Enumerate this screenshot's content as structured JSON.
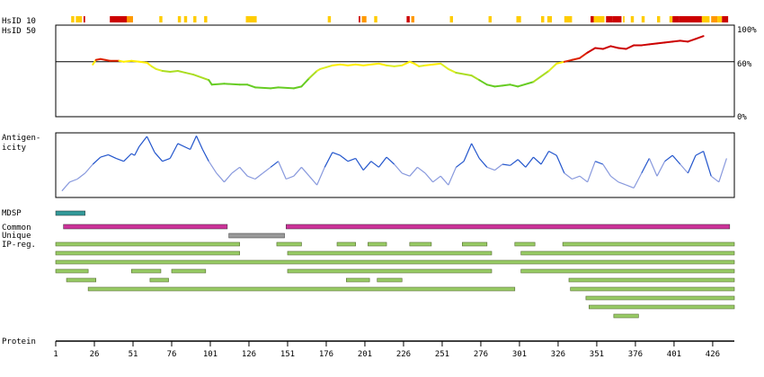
{
  "chart_data": [
    {
      "type": "heatmap",
      "row_labels": [
        "HsID 10",
        "HsID 50"
      ],
      "x_domain": [
        1,
        440
      ],
      "level_colors": {
        "low": "#ffcc00",
        "mid": "#ff9900",
        "high": "#cc0000"
      },
      "hsid10_segments": [
        [
          11,
          13,
          "low"
        ],
        [
          14,
          18,
          "low"
        ],
        [
          19,
          20,
          "high"
        ],
        [
          36,
          49,
          "high"
        ],
        [
          47,
          51,
          "mid"
        ],
        [
          68,
          70,
          "low"
        ],
        [
          80,
          82,
          "low"
        ],
        [
          84,
          86,
          "low"
        ],
        [
          90,
          92,
          "low"
        ],
        [
          97,
          99,
          "low"
        ],
        [
          124,
          131,
          "low"
        ],
        [
          177,
          179,
          "low"
        ],
        [
          197,
          198,
          "high"
        ],
        [
          199,
          202,
          "mid"
        ],
        [
          207,
          209,
          "low"
        ],
        [
          228,
          230,
          "high"
        ],
        [
          231,
          233,
          "mid"
        ],
        [
          256,
          258,
          "low"
        ],
        [
          281,
          283,
          "low"
        ],
        [
          299,
          302,
          "low"
        ],
        [
          315,
          317,
          "low"
        ],
        [
          319,
          322,
          "low"
        ],
        [
          330,
          335,
          "low"
        ],
        [
          347,
          349,
          "high"
        ],
        [
          349,
          356,
          "low"
        ],
        [
          357,
          361,
          "high"
        ],
        [
          361,
          367,
          "high"
        ],
        [
          368,
          369,
          "low"
        ],
        [
          373,
          375,
          "low"
        ],
        [
          380,
          382,
          "low"
        ],
        [
          390,
          392,
          "low"
        ],
        [
          398,
          400,
          "low"
        ],
        [
          400,
          404,
          "high"
        ],
        [
          404,
          419,
          "high"
        ],
        [
          419,
          424,
          "low"
        ],
        [
          425,
          429,
          "mid"
        ],
        [
          429,
          432,
          "low"
        ],
        [
          432,
          436,
          "high"
        ]
      ]
    },
    {
      "type": "line",
      "series_name": "HsID 50",
      "y_ticks": [
        "100%",
        "60%",
        "0%"
      ],
      "ylim": [
        0,
        100
      ],
      "reference_line": 60,
      "x": [
        25,
        27,
        30,
        33,
        36,
        42,
        45,
        50,
        55,
        60,
        63,
        66,
        70,
        75,
        80,
        85,
        90,
        100,
        102,
        110,
        120,
        125,
        130,
        140,
        145,
        155,
        160,
        165,
        170,
        172,
        176,
        180,
        185,
        190,
        195,
        200,
        210,
        215,
        220,
        225,
        230,
        233,
        236,
        240,
        245,
        250,
        255,
        260,
        270,
        275,
        280,
        285,
        290,
        295,
        300,
        310,
        320,
        325,
        330,
        335,
        340,
        345,
        350,
        355,
        360,
        365,
        370,
        375,
        380,
        385,
        390,
        395,
        400,
        405,
        410,
        415,
        420
      ],
      "y": [
        57,
        62,
        63,
        62,
        61,
        61,
        60,
        61,
        60,
        59,
        55,
        52,
        50,
        49,
        50,
        48,
        46,
        40,
        35,
        36,
        35,
        35,
        32,
        31,
        32,
        31,
        33,
        42,
        50,
        52,
        54,
        56,
        57,
        56,
        57,
        56,
        58,
        56,
        55,
        56,
        60,
        58,
        55,
        56,
        57,
        58,
        52,
        48,
        45,
        40,
        35,
        33,
        34,
        35,
        33,
        38,
        50,
        58,
        60,
        62,
        64,
        70,
        75,
        74,
        77,
        75,
        74,
        78,
        78,
        79,
        80,
        81,
        82,
        83,
        82,
        85,
        88
      ]
    },
    {
      "type": "line",
      "series_name": "Antigenicity",
      "label_lines": [
        "Antigen-",
        "icity"
      ],
      "x": [
        5,
        10,
        15,
        20,
        25,
        30,
        35,
        40,
        45,
        50,
        52,
        55,
        60,
        65,
        70,
        75,
        80,
        88,
        92,
        96,
        100,
        105,
        110,
        115,
        120,
        125,
        130,
        135,
        140,
        145,
        150,
        155,
        160,
        165,
        170,
        175,
        180,
        185,
        190,
        195,
        200,
        205,
        210,
        215,
        220,
        225,
        230,
        235,
        240,
        245,
        250,
        255,
        260,
        265,
        270,
        275,
        280,
        285,
        290,
        295,
        300,
        305,
        310,
        315,
        320,
        325,
        330,
        335,
        340,
        345,
        350,
        355,
        360,
        365,
        370,
        375,
        380,
        385,
        390,
        395,
        400,
        405,
        410,
        415,
        420,
        425,
        430,
        435
      ],
      "y": [
        0.05,
        0.2,
        0.25,
        0.35,
        0.5,
        0.62,
        0.66,
        0.6,
        0.55,
        0.68,
        0.65,
        0.8,
        0.97,
        0.7,
        0.55,
        0.6,
        0.85,
        0.75,
        0.98,
        0.75,
        0.55,
        0.35,
        0.2,
        0.35,
        0.45,
        0.3,
        0.25,
        0.35,
        0.45,
        0.55,
        0.25,
        0.3,
        0.45,
        0.3,
        0.15,
        0.45,
        0.7,
        0.65,
        0.55,
        0.6,
        0.4,
        0.55,
        0.45,
        0.62,
        0.5,
        0.35,
        0.3,
        0.45,
        0.35,
        0.2,
        0.3,
        0.15,
        0.45,
        0.55,
        0.85,
        0.6,
        0.45,
        0.4,
        0.5,
        0.48,
        0.58,
        0.45,
        0.62,
        0.5,
        0.72,
        0.65,
        0.35,
        0.25,
        0.3,
        0.2,
        0.55,
        0.5,
        0.3,
        0.2,
        0.15,
        0.1,
        0.35,
        0.6,
        0.3,
        0.55,
        0.65,
        0.5,
        0.35,
        0.65,
        0.72,
        0.3,
        0.2,
        0.6
      ]
    },
    {
      "type": "table",
      "tracks": [
        {
          "label": "MDSP",
          "color": "#339999",
          "spans": [
            [
              1,
              20
            ]
          ]
        },
        {
          "label": "Common",
          "color": "#cc3399",
          "spans": [
            [
              6,
              112
            ],
            [
              150,
              437
            ]
          ]
        },
        {
          "label": "Unique",
          "color": "#999999",
          "spans": [
            [
              113,
              149
            ]
          ]
        },
        {
          "label": "IP-reg.",
          "color": "#99cc66",
          "rows": [
            [
              [
                1,
                120
              ],
              [
                144,
                160
              ],
              [
                183,
                195
              ],
              [
                203,
                215
              ],
              [
                230,
                244
              ],
              [
                264,
                280
              ],
              [
                298,
                311
              ],
              [
                329,
                440
              ]
            ],
            [
              [
                1,
                120
              ],
              [
                151,
                283
              ],
              [
                302,
                440
              ]
            ],
            [
              [
                1,
                440
              ]
            ],
            [
              [
                1,
                22
              ],
              [
                50,
                69
              ],
              [
                76,
                98
              ],
              [
                151,
                283
              ],
              [
                302,
                440
              ]
            ],
            [
              [
                8,
                27
              ],
              [
                62,
                74
              ],
              [
                189,
                204
              ],
              [
                209,
                225
              ],
              [
                333,
                440
              ]
            ],
            [
              [
                22,
                298
              ],
              [
                334,
                440
              ]
            ],
            [
              [
                344,
                440
              ]
            ],
            [
              [
                346,
                440
              ]
            ],
            [
              [
                362,
                378
              ]
            ]
          ]
        }
      ],
      "axis_label": "Protein",
      "x_ticks": [
        1,
        26,
        51,
        76,
        101,
        126,
        151,
        176,
        201,
        226,
        251,
        276,
        301,
        326,
        351,
        376,
        401,
        426
      ]
    }
  ]
}
